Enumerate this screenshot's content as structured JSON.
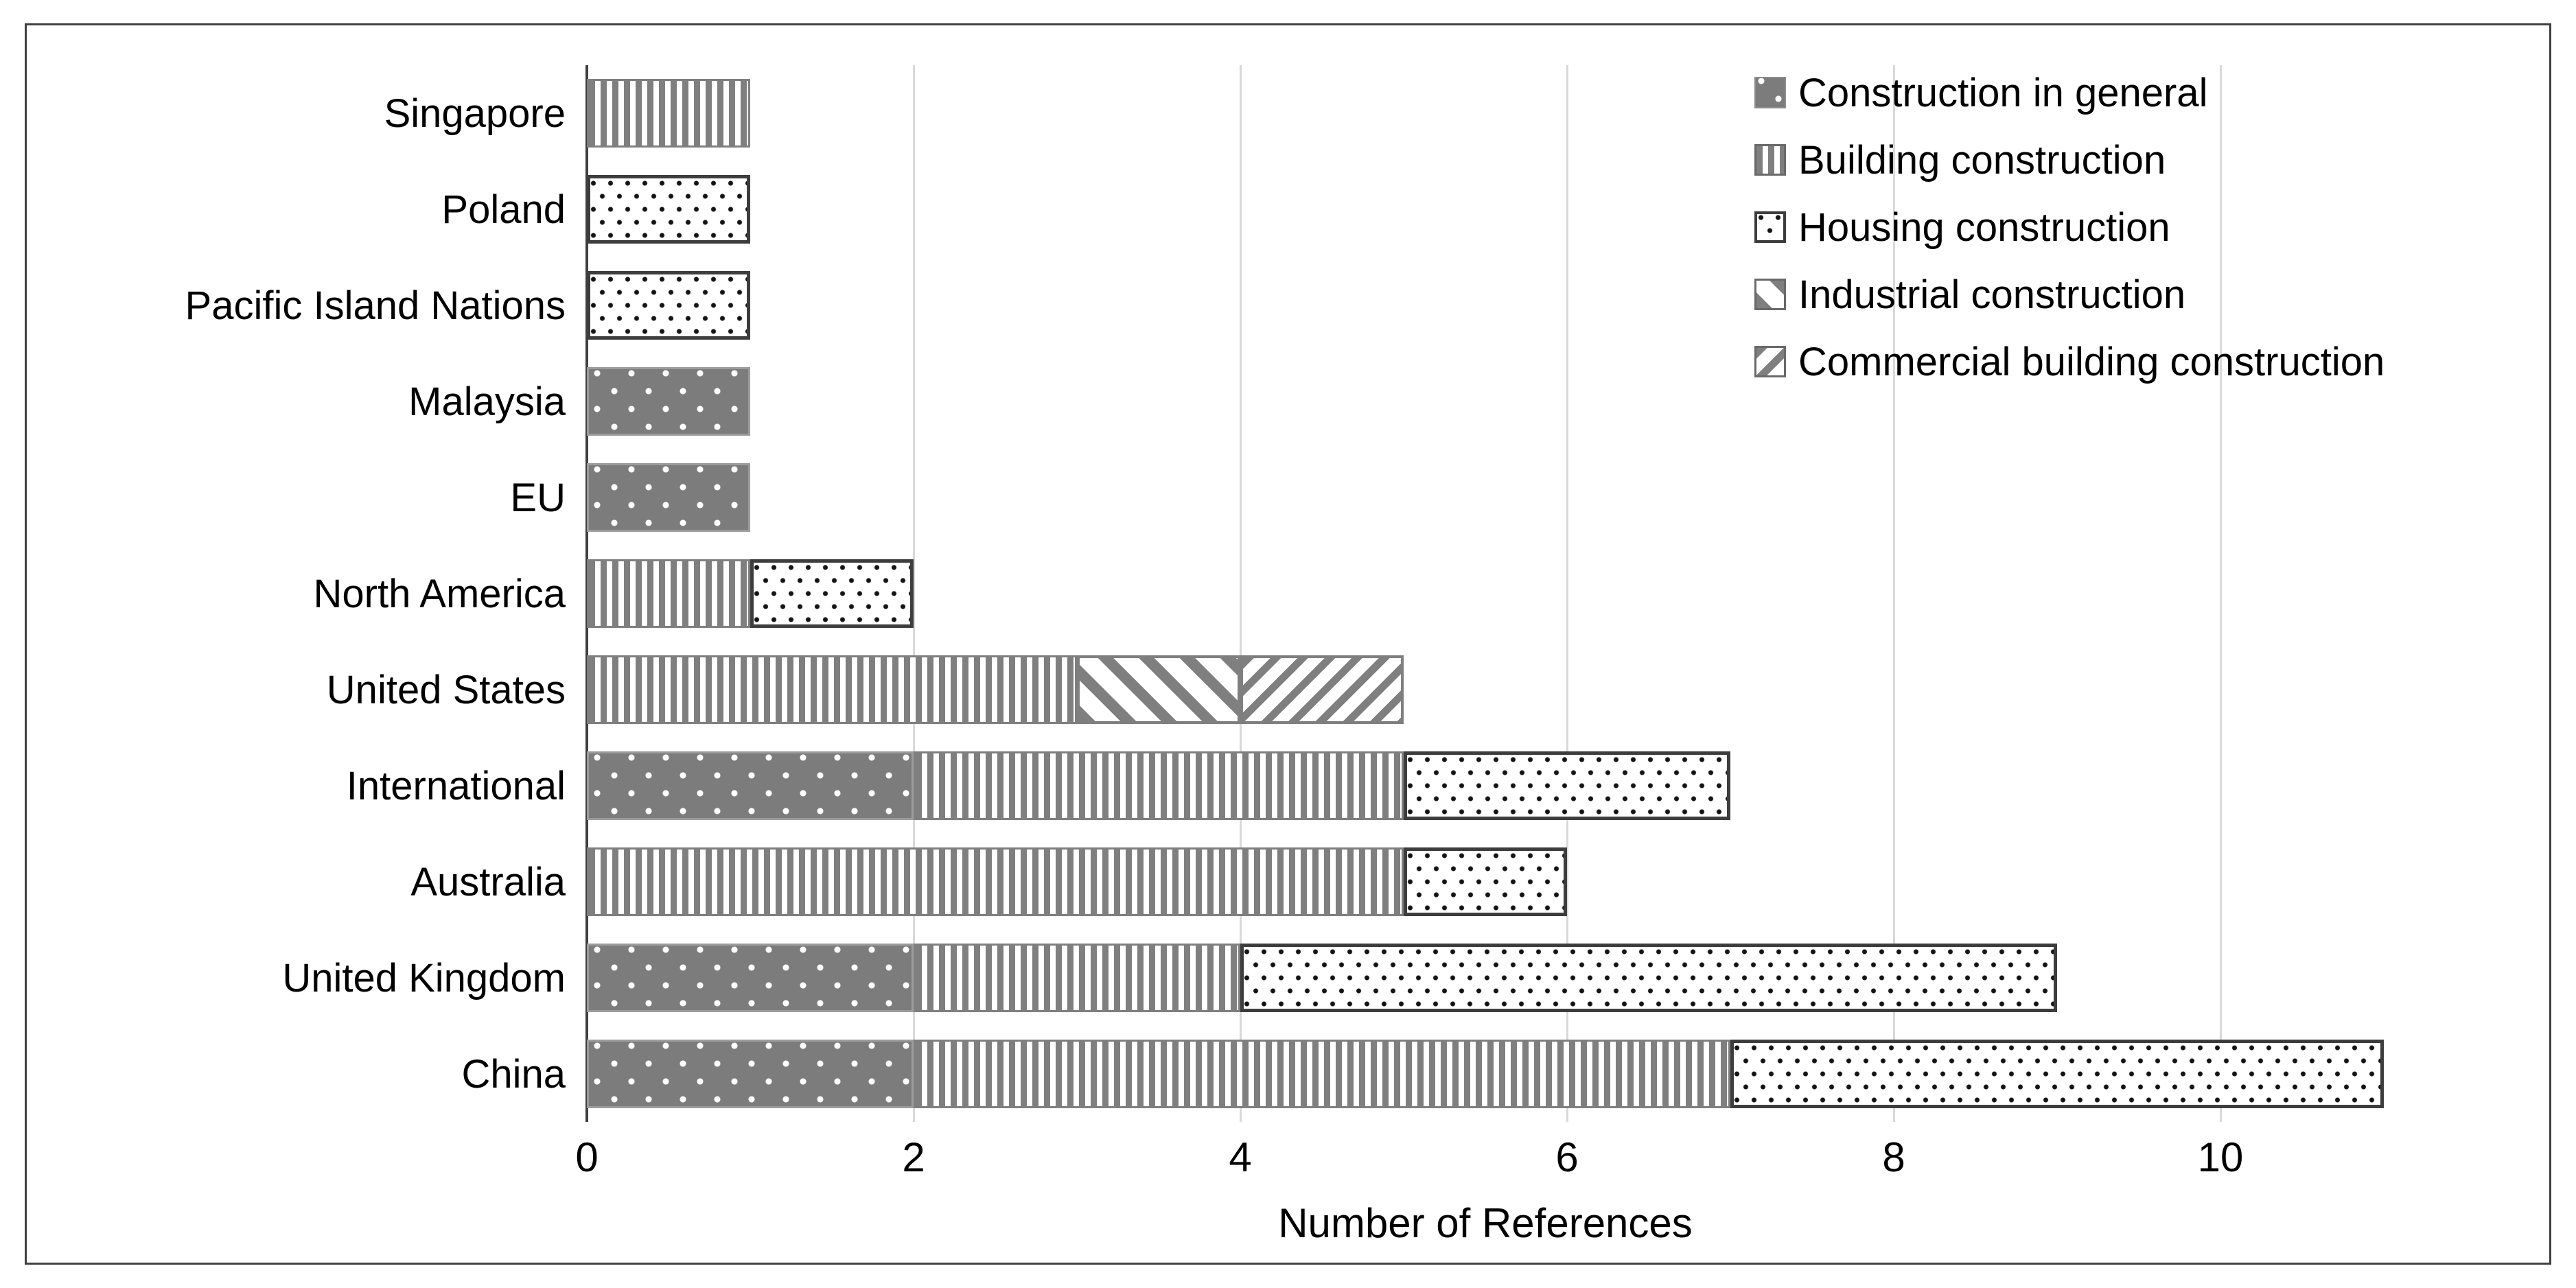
{
  "chart_data": {
    "type": "bar",
    "orientation": "horizontal",
    "stacked": true,
    "title": "",
    "xlabel": "Number of References",
    "ylabel": "",
    "xlim": [
      0,
      11
    ],
    "xticks": [
      0,
      2,
      4,
      6,
      8,
      10
    ],
    "grid": "vertical-major",
    "legend_position": "top-right",
    "categories_top_to_bottom": [
      "Singapore",
      "Poland",
      "Pacific Island Nations",
      "Malaysia",
      "EU",
      "North America",
      "United States",
      "International",
      "Australia",
      "United Kingdom",
      "China"
    ],
    "series": [
      {
        "name": "Construction in general",
        "pattern": "gray-white-dots",
        "values": [
          0,
          0,
          0,
          1,
          1,
          0,
          0,
          2,
          0,
          2,
          2
        ]
      },
      {
        "name": "Building construction",
        "pattern": "vertical-stripes",
        "values": [
          1,
          0,
          0,
          0,
          0,
          1,
          3,
          3,
          5,
          2,
          5
        ]
      },
      {
        "name": "Housing construction",
        "pattern": "black-dots",
        "values": [
          0,
          1,
          1,
          0,
          0,
          1,
          0,
          2,
          1,
          5,
          4
        ]
      },
      {
        "name": "Industrial construction",
        "pattern": "diagonal-down",
        "values": [
          0,
          0,
          0,
          0,
          0,
          0,
          1,
          0,
          0,
          0,
          0
        ]
      },
      {
        "name": "Commercial building construction",
        "pattern": "diagonal-up",
        "values": [
          0,
          0,
          0,
          0,
          0,
          0,
          1,
          0,
          0,
          0,
          0
        ]
      }
    ],
    "totals": {
      "Singapore": 1,
      "Poland": 1,
      "Pacific Island Nations": 1,
      "Malaysia": 1,
      "EU": 1,
      "North America": 2,
      "United States": 5,
      "International": 7,
      "Australia": 6,
      "United Kingdom": 9,
      "China": 11
    }
  },
  "axis": {
    "xlabel": "Number of References",
    "tick_labels": [
      "0",
      "2",
      "4",
      "6",
      "8",
      "10"
    ],
    "tick_values": [
      0,
      2,
      4,
      6,
      8,
      10
    ]
  },
  "legend": {
    "items": [
      {
        "label": "Construction in general",
        "pattern": "gray-white-dots"
      },
      {
        "label": "Building construction",
        "pattern": "vertical-stripes"
      },
      {
        "label": "Housing construction",
        "pattern": "black-dots"
      },
      {
        "label": "Industrial construction",
        "pattern": "diagonal-down"
      },
      {
        "label": "Commercial building construction",
        "pattern": "diagonal-up"
      }
    ]
  },
  "colors": {
    "pattern_gray": "#7f7f7f",
    "gridline": "#d9d9d9",
    "axis_line": "#3f3f3f",
    "frame_border": "#404040",
    "housing_border": "#3d3d3d",
    "text": "#000000",
    "background": "#ffffff"
  }
}
